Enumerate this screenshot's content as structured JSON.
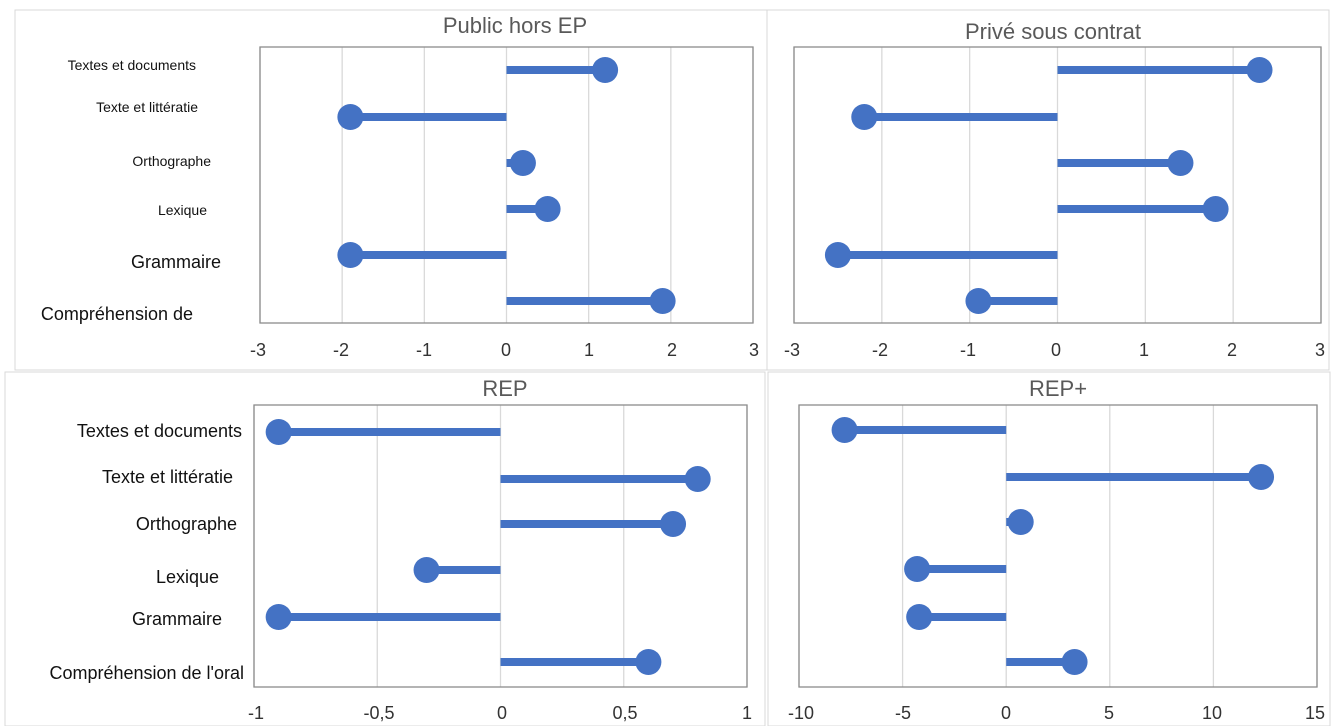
{
  "colors": {
    "series": "#4472C4",
    "grid": "#d9d9d9",
    "border": "#8c8c8c"
  },
  "chart_data": [
    {
      "type": "lollipop",
      "title": "Public hors EP",
      "categories": [
        "Textes et documents",
        "Texte et littératie",
        "Orthographe",
        "Lexique",
        "Grammaire",
        "Compréhension de"
      ],
      "values": [
        1.2,
        -1.9,
        0.2,
        0.5,
        -1.9,
        1.9
      ],
      "xlim": [
        -3,
        3
      ],
      "ticks": [
        "-3",
        "-2",
        "-1",
        "0",
        "1",
        "2",
        "3"
      ],
      "tick_values": [
        -3,
        -2,
        -1,
        0,
        1,
        2,
        3
      ],
      "grid": true
    },
    {
      "type": "lollipop",
      "title": "Privé sous contrat",
      "categories": [
        "Textes et documents",
        "Texte et littératie",
        "Orthographe",
        "Lexique",
        "Grammaire",
        "Compréhension de l'oral"
      ],
      "values": [
        2.3,
        -2.2,
        1.4,
        1.8,
        -2.5,
        -0.9
      ],
      "xlim": [
        -3,
        3
      ],
      "ticks": [
        "-3",
        "-2",
        "-1",
        "0",
        "1",
        "2",
        "3"
      ],
      "tick_values": [
        -3,
        -2,
        -1,
        0,
        1,
        2,
        3
      ],
      "grid": true
    },
    {
      "type": "lollipop",
      "title": "REP",
      "categories": [
        "Textes et documents",
        "Texte et littératie",
        "Orthographe",
        "Lexique",
        "Grammaire",
        "Compréhension de l'oral"
      ],
      "values": [
        -0.9,
        0.8,
        0.7,
        -0.3,
        -0.9,
        0.6
      ],
      "xlim": [
        -1,
        1
      ],
      "ticks": [
        "-1",
        "-0,5",
        "0",
        "0,5",
        "1"
      ],
      "tick_values": [
        -1,
        -0.5,
        0,
        0.5,
        1
      ],
      "grid": true
    },
    {
      "type": "lollipop",
      "title": "REP+",
      "categories": [
        "Textes et documents",
        "Texte et littératie",
        "Orthographe",
        "Lexique",
        "Grammaire",
        "Compréhension de l'oral"
      ],
      "values": [
        -7.8,
        12.3,
        0.7,
        -4.3,
        -4.2,
        3.3
      ],
      "xlim": [
        -10,
        15
      ],
      "ticks": [
        "-10",
        "-5",
        "0",
        "5",
        "10",
        "15"
      ],
      "tick_values": [
        -10,
        -5,
        0,
        5,
        10,
        15
      ],
      "grid": true
    }
  ]
}
